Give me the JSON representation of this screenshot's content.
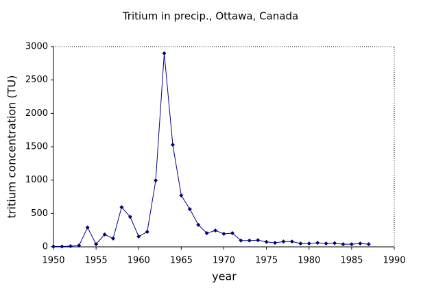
{
  "chart_data": {
    "type": "line",
    "title": "Tritium in precip., Ottawa, Canada",
    "x_label": "year",
    "y_label": "tritium concentration (TU)",
    "x": [
      1950,
      1951,
      1952,
      1953,
      1954,
      1955,
      1956,
      1957,
      1958,
      1959,
      1960,
      1961,
      1962,
      1963,
      1964,
      1965,
      1966,
      1967,
      1968,
      1969,
      1970,
      1971,
      1972,
      1973,
      1974,
      1975,
      1976,
      1977,
      1978,
      1979,
      1980,
      1981,
      1982,
      1983,
      1984,
      1985,
      1986,
      1987
    ],
    "series": [
      {
        "color": "#000080",
        "values": [
          5,
          5,
          10,
          20,
          290,
          40,
          185,
          125,
          595,
          450,
          155,
          225,
          995,
          2900,
          1530,
          770,
          565,
          330,
          205,
          245,
          195,
          205,
          95,
          95,
          100,
          75,
          60,
          80,
          80,
          50,
          50,
          60,
          50,
          55,
          40,
          40,
          50,
          40
        ]
      }
    ],
    "xlim": [
      1950,
      1990
    ],
    "xticks": [
      1950,
      1955,
      1960,
      1965,
      1970,
      1975,
      1980,
      1985,
      1990
    ],
    "ylim": [
      0,
      3000
    ],
    "yticks": [
      0,
      500,
      1000,
      1500,
      2000,
      2500,
      3000
    ]
  }
}
